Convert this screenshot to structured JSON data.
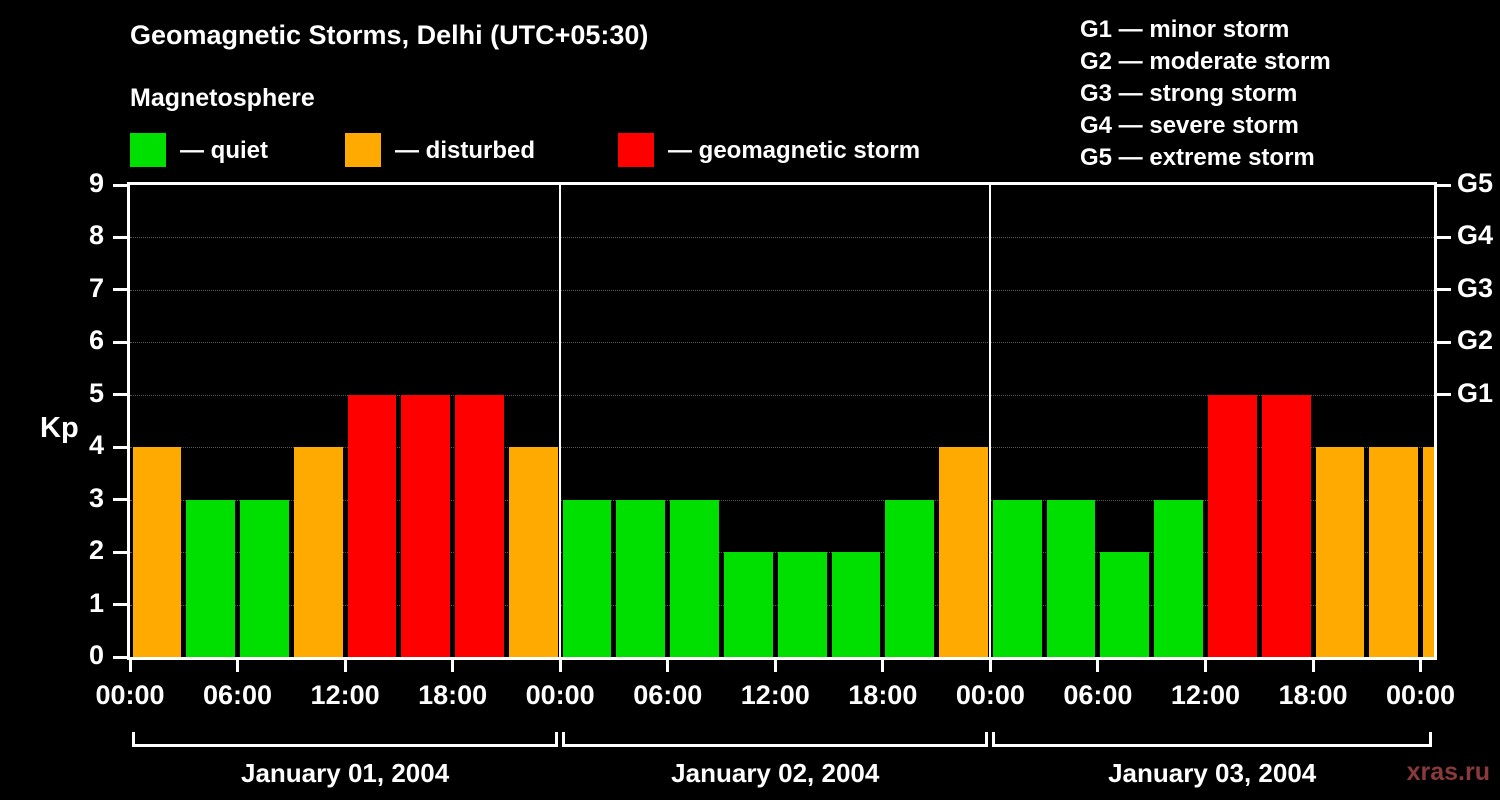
{
  "title": "Geomagnetic Storms, Delhi (UTC+05:30)",
  "subtitle": "Magnetosphere",
  "watermark": "xras.ru",
  "legend": [
    {
      "id": "quiet",
      "label": "— quiet",
      "color": "#00e000"
    },
    {
      "id": "disturbed",
      "label": "— disturbed",
      "color": "#ffaa00"
    },
    {
      "id": "storm",
      "label": "— geomagnetic storm",
      "color": "#ff0000"
    }
  ],
  "storm_scale": [
    "G1 — minor storm",
    "G2 — moderate storm",
    "G3 — strong storm",
    "G4 — severe storm",
    "G5 — extreme storm"
  ],
  "chart_data": {
    "type": "bar",
    "title": "Geomagnetic Storms, Delhi (UTC+05:30)",
    "ylabel": "Kp",
    "ylim": [
      0,
      9
    ],
    "yticks": [
      0,
      1,
      2,
      3,
      4,
      5,
      6,
      7,
      8,
      9
    ],
    "g_levels": [
      {
        "kp": 5,
        "label": "G1"
      },
      {
        "kp": 6,
        "label": "G2"
      },
      {
        "kp": 7,
        "label": "G3"
      },
      {
        "kp": 8,
        "label": "G4"
      },
      {
        "kp": 9,
        "label": "G5"
      }
    ],
    "x_ticks": [
      {
        "hour": 0,
        "label": "00:00"
      },
      {
        "hour": 6,
        "label": "06:00"
      },
      {
        "hour": 12,
        "label": "12:00"
      },
      {
        "hour": 18,
        "label": "18:00"
      },
      {
        "hour": 24,
        "label": "00:00"
      },
      {
        "hour": 30,
        "label": "06:00"
      },
      {
        "hour": 36,
        "label": "12:00"
      },
      {
        "hour": 42,
        "label": "18:00"
      },
      {
        "hour": 48,
        "label": "00:00"
      },
      {
        "hour": 54,
        "label": "06:00"
      },
      {
        "hour": 60,
        "label": "12:00"
      },
      {
        "hour": 66,
        "label": "18:00"
      },
      {
        "hour": 72,
        "label": "00:00"
      }
    ],
    "hours_span": 72.75,
    "bar_hours": 3,
    "days": [
      {
        "date": "January 01, 2004",
        "start_hour": 0,
        "values": [
          4,
          3,
          3,
          4,
          5,
          5,
          5,
          4
        ]
      },
      {
        "date": "January 02, 2004",
        "start_hour": 24,
        "values": [
          3,
          3,
          3,
          2,
          2,
          2,
          3,
          4
        ]
      },
      {
        "date": "January 03, 2004",
        "start_hour": 48,
        "values": [
          3,
          3,
          2,
          3,
          5,
          5,
          4,
          4
        ]
      }
    ],
    "next_interval_value": 4,
    "colors": {
      "quiet": "#00e000",
      "disturbed": "#ffaa00",
      "storm": "#ff0000"
    },
    "color_rule": {
      "quiet_max": 3,
      "disturbed_max": 4
    },
    "grid": "dotted-horizontal",
    "background": "#000000"
  }
}
